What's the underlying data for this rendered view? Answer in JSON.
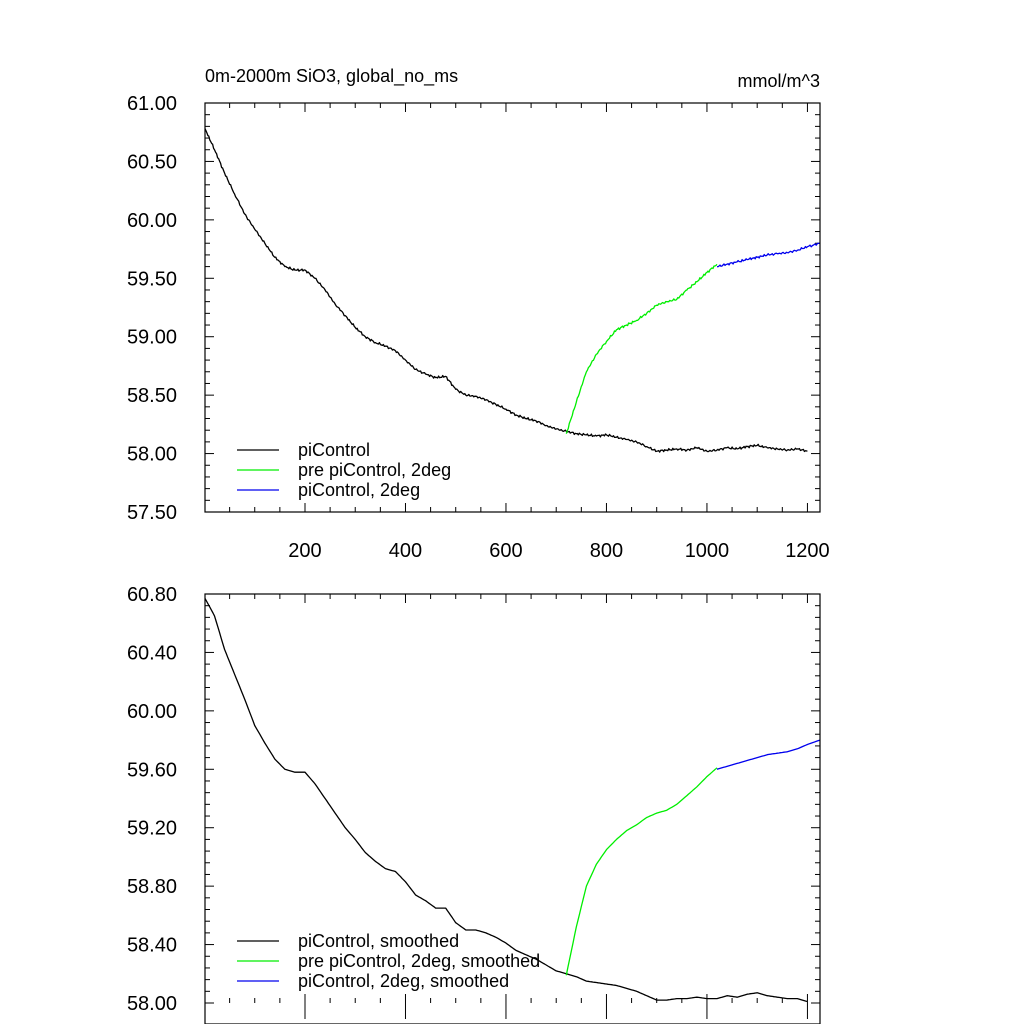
{
  "chart_data": [
    {
      "type": "line",
      "title": "0m-2000m SiO3, global_no_ms",
      "units": "mmol/m^3",
      "xlim": [
        1,
        1225
      ],
      "ylim": [
        57.5,
        61.0
      ],
      "x_ticks": [
        200,
        400,
        600,
        800,
        1000,
        1200
      ],
      "x_tick_labels": [
        "200",
        "400",
        "600",
        "800",
        "1000",
        "1200"
      ],
      "y_ticks": [
        57.5,
        58.0,
        58.5,
        59.0,
        59.5,
        60.0,
        60.5,
        61.0
      ],
      "y_tick_labels": [
        "57.50",
        "58.00",
        "58.50",
        "59.00",
        "59.50",
        "60.00",
        "60.50",
        "61.00"
      ],
      "grid": false,
      "legend_position": "bottom-left",
      "series": [
        {
          "name": "piControl",
          "color": "#000000",
          "x": [
            1,
            20,
            40,
            60,
            80,
            100,
            120,
            140,
            160,
            180,
            200,
            220,
            240,
            260,
            280,
            300,
            320,
            340,
            360,
            380,
            400,
            420,
            440,
            460,
            480,
            500,
            520,
            540,
            560,
            580,
            600,
            620,
            640,
            660,
            680,
            700,
            720,
            740,
            760,
            780,
            800,
            820,
            840,
            860,
            880,
            900,
            920,
            940,
            960,
            980,
            1000,
            1020,
            1040,
            1060,
            1080,
            1100,
            1120,
            1140,
            1160,
            1180,
            1200
          ],
          "values": [
            60.78,
            60.6,
            60.4,
            60.22,
            60.05,
            59.92,
            59.8,
            59.68,
            59.6,
            59.57,
            59.57,
            59.5,
            59.4,
            59.28,
            59.18,
            59.08,
            59.0,
            58.95,
            58.92,
            58.88,
            58.8,
            58.72,
            58.68,
            58.65,
            58.66,
            58.55,
            58.5,
            58.49,
            58.46,
            58.42,
            58.38,
            58.33,
            58.3,
            58.28,
            58.24,
            58.21,
            58.19,
            58.17,
            58.16,
            58.15,
            58.16,
            58.14,
            58.12,
            58.1,
            58.06,
            58.02,
            58.03,
            58.04,
            58.03,
            58.05,
            58.02,
            58.03,
            58.05,
            58.04,
            58.06,
            58.07,
            58.05,
            58.04,
            58.03,
            58.04,
            58.02
          ]
        },
        {
          "name": "pre piControl, 2deg",
          "color": "#00ee00",
          "x": [
            720,
            740,
            760,
            780,
            800,
            820,
            840,
            860,
            880,
            900,
            920,
            940,
            960,
            980,
            1000,
            1020
          ],
          "values": [
            58.17,
            58.44,
            58.7,
            58.85,
            58.96,
            59.06,
            59.1,
            59.14,
            59.2,
            59.27,
            59.3,
            59.32,
            59.4,
            59.47,
            59.55,
            59.62
          ]
        },
        {
          "name": "piControl, 2deg",
          "color": "#0000ee",
          "x": [
            1020,
            1040,
            1060,
            1080,
            1100,
            1120,
            1140,
            1160,
            1180,
            1200,
            1225
          ],
          "values": [
            59.6,
            59.62,
            59.64,
            59.66,
            59.68,
            59.7,
            59.71,
            59.72,
            59.74,
            59.77,
            59.8
          ]
        }
      ]
    },
    {
      "type": "line",
      "title": "",
      "xlim": [
        1,
        1225
      ],
      "ylim": [
        58.0,
        60.8
      ],
      "y_ticks": [
        58.0,
        58.4,
        58.8,
        59.2,
        59.6,
        60.0,
        60.4,
        60.8
      ],
      "y_tick_labels": [
        "58.00",
        "58.40",
        "58.80",
        "59.20",
        "59.60",
        "60.00",
        "60.40",
        "60.80"
      ],
      "grid": false,
      "legend_position": "bottom-left",
      "series": [
        {
          "name": "piControl, smoothed",
          "color": "#000000",
          "x": [
            1,
            20,
            40,
            60,
            80,
            100,
            120,
            140,
            160,
            180,
            200,
            220,
            240,
            260,
            280,
            300,
            320,
            340,
            360,
            380,
            400,
            420,
            440,
            460,
            480,
            500,
            520,
            540,
            560,
            580,
            600,
            620,
            640,
            660,
            680,
            700,
            720,
            740,
            760,
            780,
            800,
            820,
            840,
            860,
            880,
            900,
            920,
            940,
            960,
            980,
            1000,
            1020,
            1040,
            1060,
            1080,
            1100,
            1120,
            1140,
            1160,
            1180,
            1200
          ],
          "values": [
            60.77,
            60.65,
            60.42,
            60.25,
            60.08,
            59.9,
            59.78,
            59.67,
            59.6,
            59.58,
            59.58,
            59.5,
            59.4,
            59.3,
            59.2,
            59.12,
            59.03,
            58.97,
            58.92,
            58.9,
            58.83,
            58.74,
            58.7,
            58.65,
            58.65,
            58.55,
            58.5,
            58.5,
            58.48,
            58.45,
            58.41,
            58.36,
            58.33,
            58.3,
            58.26,
            58.22,
            58.2,
            58.18,
            58.15,
            58.14,
            58.13,
            58.12,
            58.1,
            58.08,
            58.05,
            58.02,
            58.02,
            58.03,
            58.03,
            58.04,
            58.03,
            58.03,
            58.05,
            58.04,
            58.06,
            58.07,
            58.05,
            58.04,
            58.03,
            58.03,
            58.01
          ]
        },
        {
          "name": "pre piControl, 2deg, smoothed",
          "color": "#00ee00",
          "x": [
            720,
            740,
            760,
            780,
            800,
            820,
            840,
            860,
            880,
            900,
            920,
            940,
            960,
            980,
            1000,
            1020
          ],
          "values": [
            58.19,
            58.52,
            58.8,
            58.95,
            59.05,
            59.12,
            59.18,
            59.22,
            59.27,
            59.3,
            59.32,
            59.36,
            59.42,
            59.48,
            59.55,
            59.61
          ]
        },
        {
          "name": "piControl, 2deg, smoothed",
          "color": "#0000ee",
          "x": [
            1020,
            1040,
            1060,
            1080,
            1100,
            1120,
            1140,
            1160,
            1180,
            1200,
            1225
          ],
          "values": [
            59.6,
            59.62,
            59.64,
            59.66,
            59.68,
            59.7,
            59.71,
            59.72,
            59.74,
            59.77,
            59.8
          ]
        }
      ]
    }
  ]
}
